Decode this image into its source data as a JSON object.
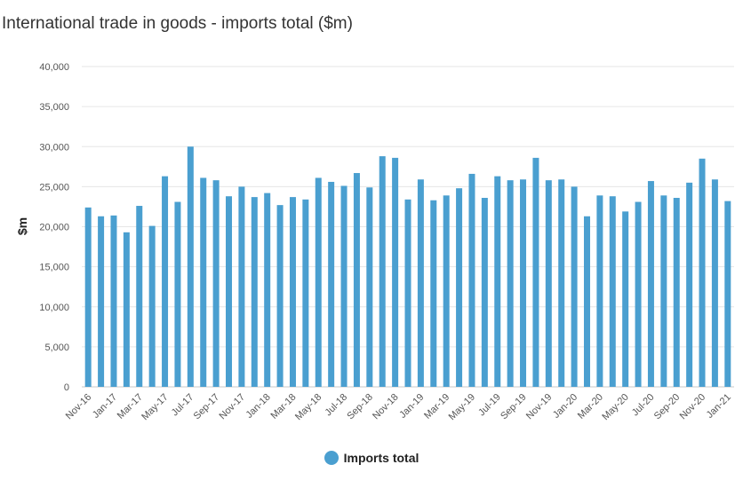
{
  "chart_data": {
    "type": "bar",
    "title": "International trade in goods - imports total ($m)",
    "ylabel": "$m",
    "xlabel": "",
    "ylim": [
      0,
      40000
    ],
    "y_ticks": [
      "0",
      "5,000",
      "10,000",
      "15,000",
      "20,000",
      "25,000",
      "30,000",
      "35,000",
      "40,000"
    ],
    "x_tick_labels": [
      "Nov-16",
      "Jan-17",
      "Mar-17",
      "May-17",
      "Jul-17",
      "Sep-17",
      "Nov-17",
      "Jan-18",
      "Mar-18",
      "May-18",
      "Jul-18",
      "Sep-18",
      "Nov-18",
      "Jan-19",
      "Mar-19",
      "May-19",
      "Jul-19",
      "Sep-19",
      "Nov-19",
      "Jan-20",
      "Mar-20",
      "May-20",
      "Jul-20",
      "Sep-20",
      "Nov-20",
      "Jan-21"
    ],
    "categories": [
      "Nov-16",
      "Dec-16",
      "Jan-17",
      "Feb-17",
      "Mar-17",
      "Apr-17",
      "May-17",
      "Jun-17",
      "Jul-17",
      "Aug-17",
      "Sep-17",
      "Oct-17",
      "Nov-17",
      "Dec-17",
      "Jan-18",
      "Feb-18",
      "Mar-18",
      "Apr-18",
      "May-18",
      "Jun-18",
      "Jul-18",
      "Aug-18",
      "Sep-18",
      "Oct-18",
      "Nov-18",
      "Dec-18",
      "Jan-19",
      "Feb-19",
      "Mar-19",
      "Apr-19",
      "May-19",
      "Jun-19",
      "Jul-19",
      "Aug-19",
      "Sep-19",
      "Oct-19",
      "Nov-19",
      "Dec-19",
      "Jan-20",
      "Feb-20",
      "Mar-20",
      "Apr-20",
      "May-20",
      "Jun-20",
      "Jul-20",
      "Aug-20",
      "Sep-20",
      "Oct-20",
      "Nov-20",
      "Dec-20",
      "Jan-21"
    ],
    "series": [
      {
        "name": "Imports total",
        "color": "#4a9fd0",
        "values": [
          22400,
          21300,
          21400,
          19300,
          22600,
          20100,
          26300,
          23100,
          30000,
          26100,
          25800,
          23800,
          25000,
          23700,
          24200,
          22700,
          23700,
          23400,
          26100,
          25600,
          25100,
          26700,
          24900,
          28800,
          28600,
          23400,
          25900,
          23300,
          23900,
          24800,
          26600,
          23600,
          26300,
          25800,
          25900,
          28600,
          25800,
          25900,
          25000,
          21300,
          23900,
          23800,
          21900,
          23100,
          25700,
          23900,
          23600,
          25500,
          28500,
          25900,
          23200
        ]
      }
    ],
    "grid": true,
    "legend_position": "bottom-center"
  },
  "legend": {
    "label": "Imports total",
    "icon": "circle-swatch-icon"
  }
}
